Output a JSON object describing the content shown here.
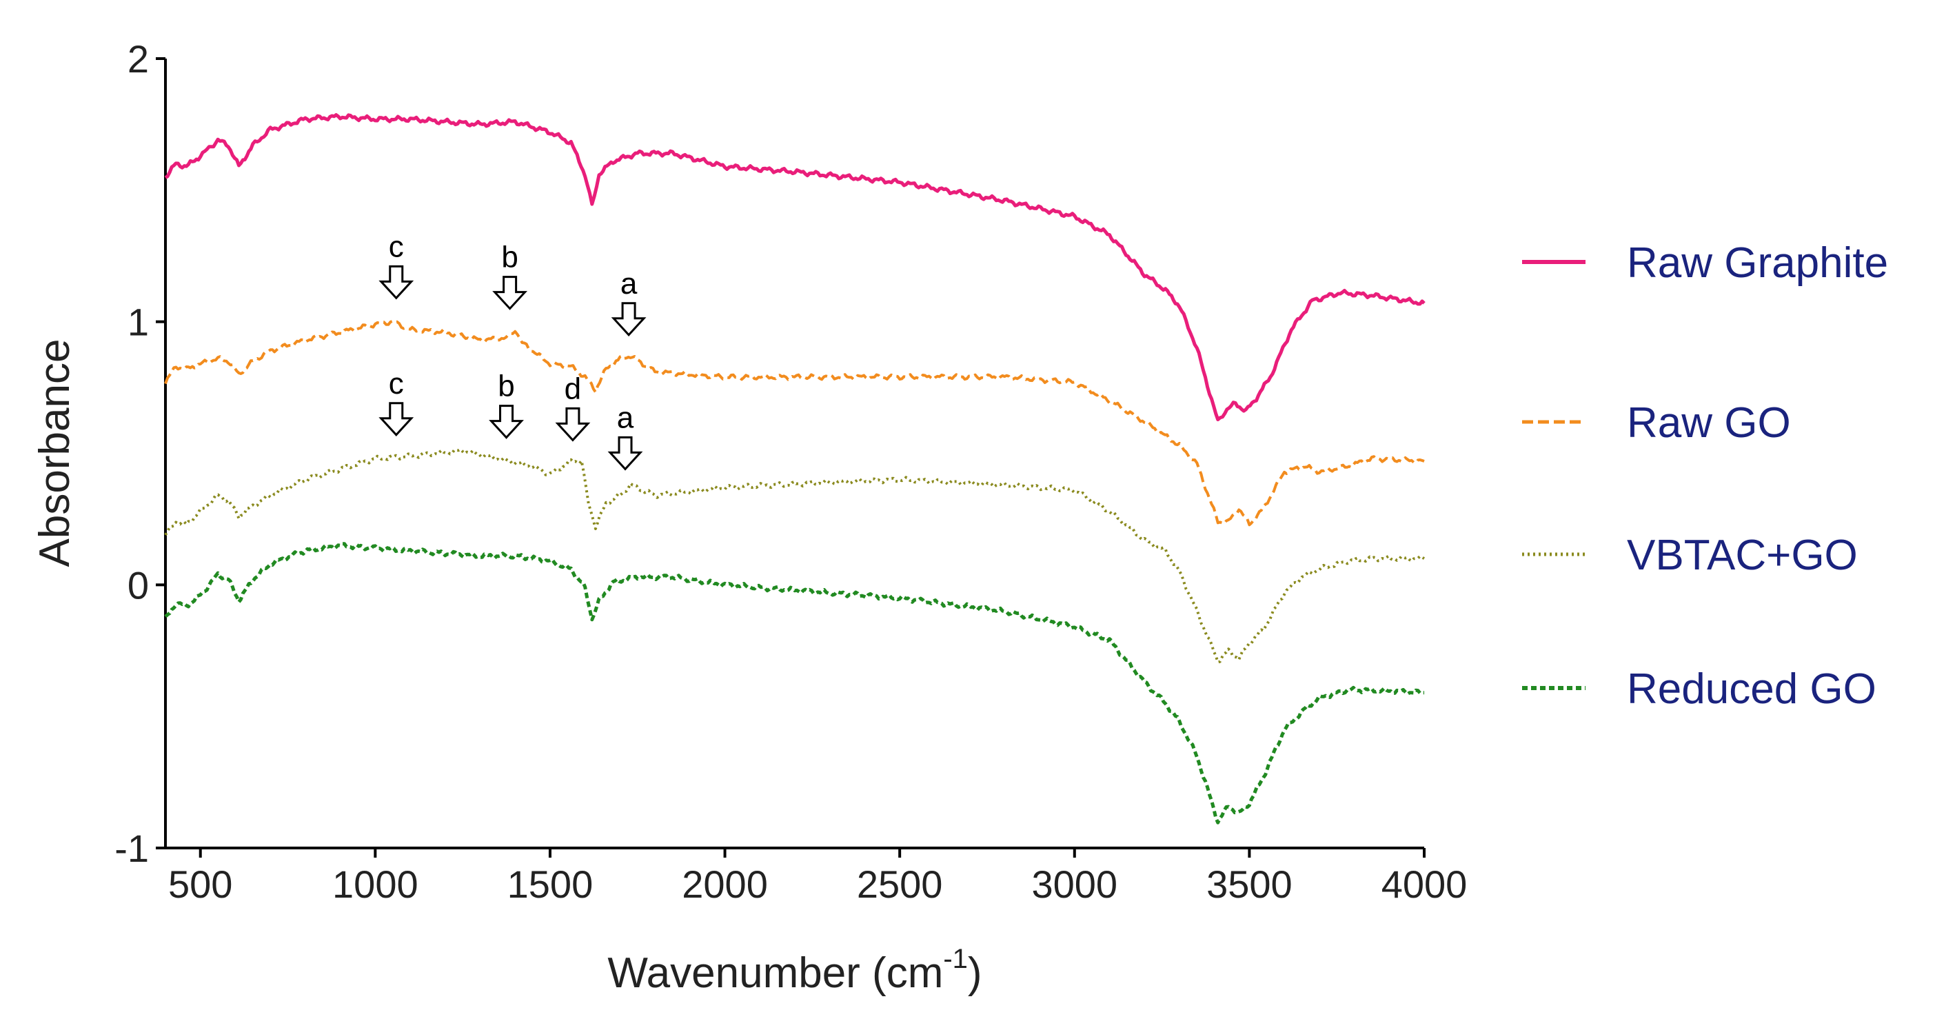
{
  "chart_data": {
    "type": "line",
    "title": "",
    "xlabel": "Wavenumber (cm",
    "xlabel_sup": "-1",
    "xlabel_suffix": ")",
    "ylabel": "Absorbance",
    "xlim": [
      400,
      4000
    ],
    "ylim": [
      -1,
      2
    ],
    "xticks": [
      500,
      1000,
      1500,
      2000,
      2500,
      3000,
      3500,
      4000
    ],
    "yticks": [
      -1,
      0,
      1,
      2
    ],
    "grid": false,
    "legend_position": "right",
    "series": [
      {
        "name": "Raw Graphite",
        "color": "#e91e7a",
        "style": "solid",
        "points": [
          [
            400,
            1.55
          ],
          [
            430,
            1.6
          ],
          [
            460,
            1.59
          ],
          [
            500,
            1.63
          ],
          [
            550,
            1.69
          ],
          [
            580,
            1.67
          ],
          [
            610,
            1.59
          ],
          [
            650,
            1.67
          ],
          [
            700,
            1.73
          ],
          [
            800,
            1.77
          ],
          [
            900,
            1.78
          ],
          [
            1000,
            1.77
          ],
          [
            1100,
            1.77
          ],
          [
            1200,
            1.76
          ],
          [
            1300,
            1.75
          ],
          [
            1400,
            1.76
          ],
          [
            1500,
            1.72
          ],
          [
            1560,
            1.68
          ],
          [
            1600,
            1.56
          ],
          [
            1620,
            1.44
          ],
          [
            1640,
            1.56
          ],
          [
            1680,
            1.61
          ],
          [
            1750,
            1.64
          ],
          [
            1850,
            1.64
          ],
          [
            2000,
            1.59
          ],
          [
            2200,
            1.57
          ],
          [
            2500,
            1.53
          ],
          [
            2800,
            1.46
          ],
          [
            3000,
            1.4
          ],
          [
            3100,
            1.33
          ],
          [
            3200,
            1.18
          ],
          [
            3260,
            1.12
          ],
          [
            3300,
            1.06
          ],
          [
            3350,
            0.9
          ],
          [
            3410,
            0.62
          ],
          [
            3430,
            0.66
          ],
          [
            3460,
            0.69
          ],
          [
            3490,
            0.66
          ],
          [
            3520,
            0.71
          ],
          [
            3560,
            0.79
          ],
          [
            3620,
            0.97
          ],
          [
            3680,
            1.08
          ],
          [
            3760,
            1.11
          ],
          [
            3850,
            1.1
          ],
          [
            4000,
            1.07
          ]
        ]
      },
      {
        "name": "Raw GO",
        "color": "#f28c1e",
        "style": "dashed",
        "points": [
          [
            400,
            0.77
          ],
          [
            430,
            0.83
          ],
          [
            460,
            0.82
          ],
          [
            500,
            0.84
          ],
          [
            550,
            0.86
          ],
          [
            580,
            0.85
          ],
          [
            610,
            0.8
          ],
          [
            650,
            0.85
          ],
          [
            700,
            0.89
          ],
          [
            800,
            0.93
          ],
          [
            900,
            0.96
          ],
          [
            1000,
            0.99
          ],
          [
            1050,
            1.0
          ],
          [
            1100,
            0.97
          ],
          [
            1200,
            0.96
          ],
          [
            1300,
            0.93
          ],
          [
            1380,
            0.94
          ],
          [
            1400,
            0.97
          ],
          [
            1420,
            0.92
          ],
          [
            1500,
            0.84
          ],
          [
            1560,
            0.83
          ],
          [
            1600,
            0.79
          ],
          [
            1630,
            0.74
          ],
          [
            1660,
            0.82
          ],
          [
            1700,
            0.86
          ],
          [
            1730,
            0.87
          ],
          [
            1800,
            0.81
          ],
          [
            2000,
            0.79
          ],
          [
            2500,
            0.79
          ],
          [
            2800,
            0.79
          ],
          [
            3000,
            0.77
          ],
          [
            3100,
            0.7
          ],
          [
            3200,
            0.62
          ],
          [
            3300,
            0.53
          ],
          [
            3350,
            0.46
          ],
          [
            3410,
            0.24
          ],
          [
            3440,
            0.24
          ],
          [
            3470,
            0.29
          ],
          [
            3500,
            0.23
          ],
          [
            3540,
            0.29
          ],
          [
            3600,
            0.43
          ],
          [
            3660,
            0.45
          ],
          [
            3700,
            0.43
          ],
          [
            3780,
            0.45
          ],
          [
            3850,
            0.48
          ],
          [
            4000,
            0.47
          ]
        ]
      },
      {
        "name": "VBTAC+GO",
        "color": "#8a8a1e",
        "style": "dotted",
        "points": [
          [
            400,
            0.19
          ],
          [
            430,
            0.24
          ],
          [
            460,
            0.23
          ],
          [
            500,
            0.28
          ],
          [
            550,
            0.34
          ],
          [
            580,
            0.32
          ],
          [
            610,
            0.26
          ],
          [
            650,
            0.3
          ],
          [
            700,
            0.34
          ],
          [
            800,
            0.4
          ],
          [
            900,
            0.44
          ],
          [
            1000,
            0.48
          ],
          [
            1100,
            0.49
          ],
          [
            1250,
            0.51
          ],
          [
            1350,
            0.48
          ],
          [
            1450,
            0.45
          ],
          [
            1500,
            0.42
          ],
          [
            1560,
            0.47
          ],
          [
            1590,
            0.47
          ],
          [
            1610,
            0.31
          ],
          [
            1630,
            0.22
          ],
          [
            1660,
            0.31
          ],
          [
            1700,
            0.34
          ],
          [
            1730,
            0.38
          ],
          [
            1800,
            0.34
          ],
          [
            2000,
            0.37
          ],
          [
            2300,
            0.39
          ],
          [
            2500,
            0.4
          ],
          [
            2800,
            0.38
          ],
          [
            3000,
            0.36
          ],
          [
            3100,
            0.28
          ],
          [
            3200,
            0.17
          ],
          [
            3260,
            0.13
          ],
          [
            3300,
            0.05
          ],
          [
            3350,
            -0.1
          ],
          [
            3410,
            -0.29
          ],
          [
            3440,
            -0.25
          ],
          [
            3470,
            -0.28
          ],
          [
            3500,
            -0.22
          ],
          [
            3540,
            -0.17
          ],
          [
            3600,
            -0.03
          ],
          [
            3650,
            0.03
          ],
          [
            3700,
            0.06
          ],
          [
            3780,
            0.09
          ],
          [
            3850,
            0.1
          ],
          [
            4000,
            0.1
          ]
        ]
      },
      {
        "name": "Reduced GO",
        "color": "#218a21",
        "style": "dashed-short",
        "points": [
          [
            400,
            -0.13
          ],
          [
            430,
            -0.07
          ],
          [
            460,
            -0.08
          ],
          [
            500,
            -0.04
          ],
          [
            550,
            0.04
          ],
          [
            580,
            0.02
          ],
          [
            610,
            -0.06
          ],
          [
            650,
            0.02
          ],
          [
            700,
            0.08
          ],
          [
            800,
            0.13
          ],
          [
            900,
            0.15
          ],
          [
            1000,
            0.14
          ],
          [
            1100,
            0.13
          ],
          [
            1200,
            0.12
          ],
          [
            1300,
            0.11
          ],
          [
            1400,
            0.11
          ],
          [
            1500,
            0.09
          ],
          [
            1560,
            0.06
          ],
          [
            1600,
            -0.01
          ],
          [
            1620,
            -0.13
          ],
          [
            1640,
            -0.06
          ],
          [
            1680,
            0.01
          ],
          [
            1750,
            0.03
          ],
          [
            1850,
            0.03
          ],
          [
            2000,
            0.0
          ],
          [
            2200,
            -0.02
          ],
          [
            2500,
            -0.05
          ],
          [
            2800,
            -0.1
          ],
          [
            3000,
            -0.16
          ],
          [
            3100,
            -0.21
          ],
          [
            3200,
            -0.37
          ],
          [
            3260,
            -0.45
          ],
          [
            3300,
            -0.52
          ],
          [
            3350,
            -0.65
          ],
          [
            3410,
            -0.9
          ],
          [
            3440,
            -0.84
          ],
          [
            3470,
            -0.87
          ],
          [
            3500,
            -0.83
          ],
          [
            3540,
            -0.73
          ],
          [
            3600,
            -0.55
          ],
          [
            3660,
            -0.47
          ],
          [
            3700,
            -0.43
          ],
          [
            3780,
            -0.4
          ],
          [
            3850,
            -0.4
          ],
          [
            4000,
            -0.41
          ]
        ]
      }
    ],
    "annotations": [
      {
        "label": "c",
        "x": 1060,
        "y": 1.09
      },
      {
        "label": "b",
        "x": 1385,
        "y": 1.05
      },
      {
        "label": "a",
        "x": 1725,
        "y": 0.95
      },
      {
        "label": "c",
        "x": 1060,
        "y": 0.57
      },
      {
        "label": "b",
        "x": 1375,
        "y": 0.56
      },
      {
        "label": "d",
        "x": 1565,
        "y": 0.55
      },
      {
        "label": "a",
        "x": 1715,
        "y": 0.44
      }
    ]
  }
}
